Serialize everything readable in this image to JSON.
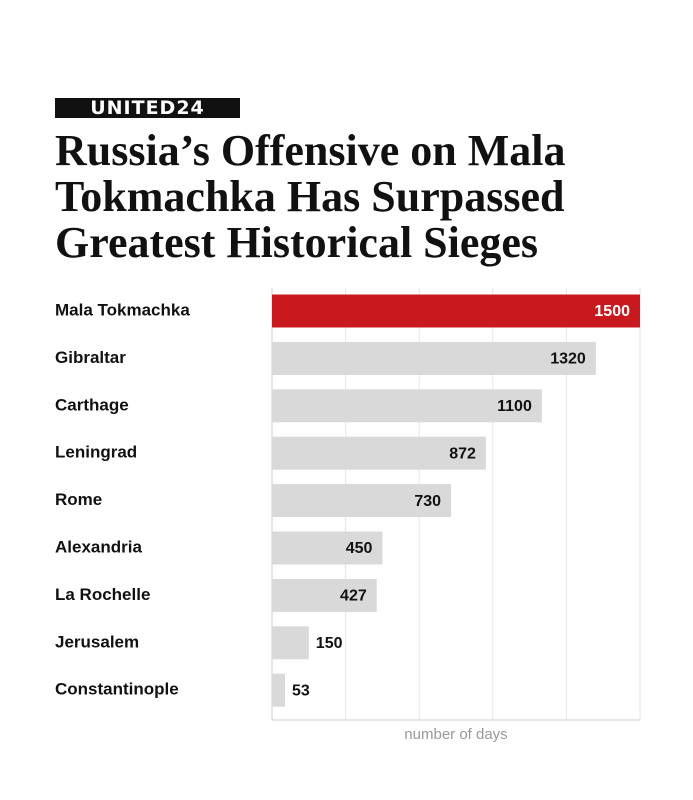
{
  "brand": "UNITED24",
  "chart_data": {
    "type": "bar",
    "orientation": "horizontal",
    "title": "Russia’s Offensive on Mala Tokmachka Has Surpassed Greatest Historical Sieges",
    "categories": [
      "Mala Tokmachka",
      "Gibraltar",
      "Carthage",
      "Leningrad",
      "Rome",
      "Alexandria",
      "La Rochelle",
      "Jerusalem",
      "Constantinople"
    ],
    "values": [
      1500,
      1320,
      1100,
      872,
      730,
      450,
      427,
      150,
      53
    ],
    "colors": [
      "#c8191e",
      "#d9d9d9",
      "#d9d9d9",
      "#d9d9d9",
      "#d9d9d9",
      "#d9d9d9",
      "#d9d9d9",
      "#d9d9d9",
      "#d9d9d9"
    ],
    "xlabel": "number of days",
    "xlim": [
      0,
      1500
    ],
    "xticks": [
      0,
      300,
      600,
      900,
      1200,
      1500
    ],
    "grid": true
  }
}
